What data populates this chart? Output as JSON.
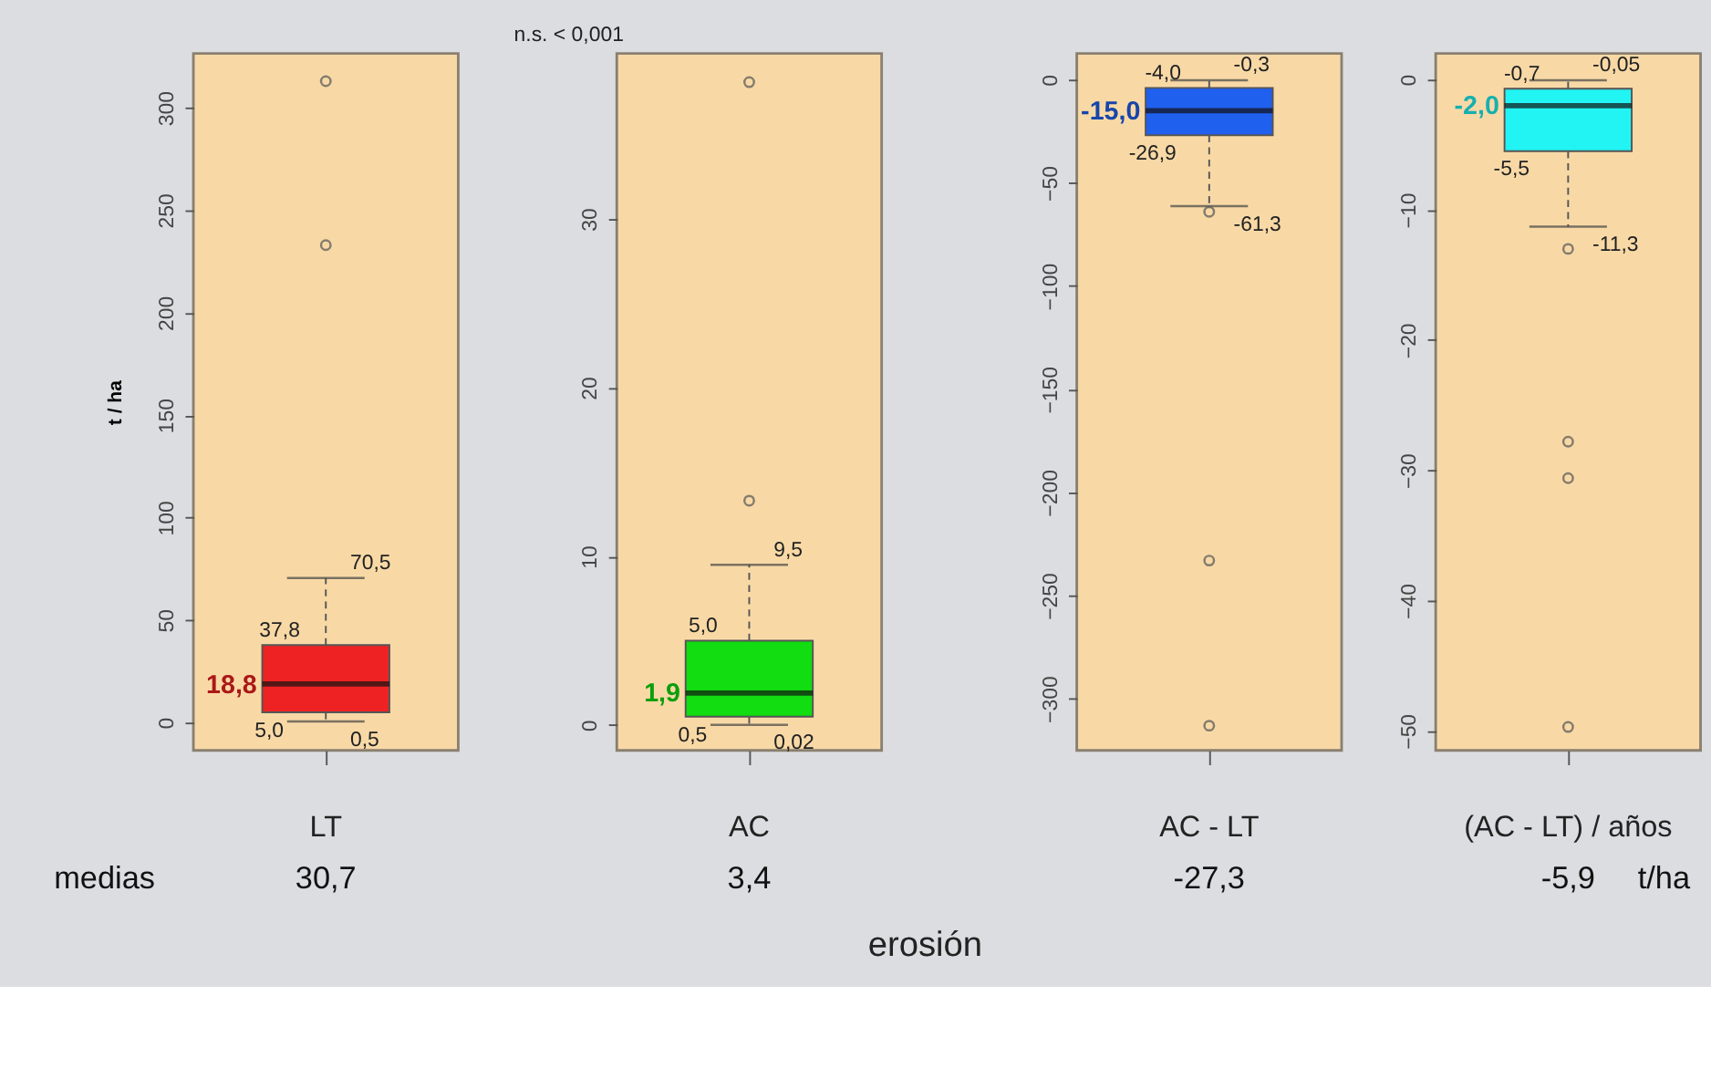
{
  "chart_data": [
    {
      "type": "box",
      "ylabel": "t / ha",
      "categories": [
        "LT"
      ],
      "colors": [
        "#ee2222"
      ],
      "boxes": [
        {
          "low": 0.5,
          "q1": 5.0,
          "median": 18.8,
          "q3": 37.8,
          "high": 70.5,
          "outliers": [
            233,
            313
          ]
        }
      ],
      "annotations": [
        "medias",
        "30,7",
        {
          "text": "70,5",
          "x": "LT",
          "y": 70.5
        },
        {
          "text": "37,8",
          "x": "LT",
          "y": 37.8
        },
        {
          "text": "18,8",
          "x": "LT",
          "y": 18.8
        },
        {
          "text": "5,0",
          "x": "LT",
          "y": 5.0
        },
        {
          "text": "0,5",
          "x": "LT",
          "y": 0.5
        }
      ],
      "ylim": [
        -13.6,
        326.5
      ],
      "yticks": [
        0,
        50,
        100,
        150,
        200,
        250,
        300
      ],
      "grid": false
    },
    {
      "type": "box",
      "subtitle": "n.s. < 0,001",
      "xlabel": "erosión",
      "categories": [
        "AC"
      ],
      "colors": [
        "#11dd11"
      ],
      "boxes": [
        {
          "low": 0.02,
          "q1": 0.5,
          "median": 1.9,
          "q3": 5.0,
          "high": 9.5,
          "outliers": [
            13.3,
            38.1
          ]
        }
      ],
      "annotations": [
        "3,4",
        {
          "text": "9,5",
          "x": "AC",
          "y": 9.5
        },
        {
          "text": "5,0",
          "x": "AC",
          "y": 5.0
        },
        {
          "text": "1,9",
          "x": "AC",
          "y": 1.9
        },
        {
          "text": "0,5",
          "x": "AC",
          "y": 0.5
        },
        {
          "text": "0,02",
          "x": "AC",
          "y": 0.02
        }
      ],
      "ylim": [
        -1.5,
        39.8
      ],
      "yticks": [
        0,
        10,
        20,
        30
      ],
      "grid": false
    },
    {
      "type": "box",
      "categories": [
        "AC - LT"
      ],
      "colors": [
        "#2060ee"
      ],
      "boxes": [
        {
          "low": -61.3,
          "q1": -26.9,
          "median": -15.0,
          "q3": -4.0,
          "high": -0.3,
          "outliers": [
            -64,
            -233,
            -313
          ]
        }
      ],
      "annotations": [
        "-27,3",
        {
          "text": "-0,3",
          "x": "AC - LT",
          "y": -0.3
        },
        {
          "text": "-4,0",
          "x": "AC - LT",
          "y": -4.0
        },
        {
          "text": "-15,0",
          "x": "AC - LT",
          "y": -15.0
        },
        {
          "text": "-26,9",
          "x": "AC - LT",
          "y": -26.9
        },
        {
          "text": "-61,3",
          "x": "AC - LT",
          "y": -61.3
        }
      ],
      "ylim": [
        -325,
        12.7
      ],
      "yticks": [
        0,
        -50,
        -100,
        -150,
        -200,
        -250,
        -300
      ],
      "grid": false
    },
    {
      "type": "box",
      "categories": [
        "(AC - LT) / años"
      ],
      "colors": [
        "#22f4f4"
      ],
      "boxes": [
        {
          "low": -11.3,
          "q1": -5.5,
          "median": -2.0,
          "q3": -0.7,
          "high": -0.05,
          "outliers": [
            -13.0,
            -27.8,
            -30.6,
            -49.7
          ]
        }
      ],
      "annotations": [
        "-5,9",
        "t/ha",
        {
          "text": "-0,05",
          "x": "(AC - LT) / años",
          "y": -0.05
        },
        {
          "text": "-0,7",
          "x": "(AC - LT) / años",
          "y": -0.7
        },
        {
          "text": "-2,0",
          "x": "(AC - LT) / años",
          "y": -2.0
        },
        {
          "text": "-5,5",
          "x": "(AC - LT) / años",
          "y": -5.5
        },
        {
          "text": "-11,3",
          "x": "(AC - LT) / años",
          "y": -11.3
        }
      ],
      "ylim": [
        -51.5,
        2.0
      ],
      "yticks": [
        0,
        -10,
        -20,
        -30,
        -40,
        -50
      ],
      "grid": false
    }
  ]
}
